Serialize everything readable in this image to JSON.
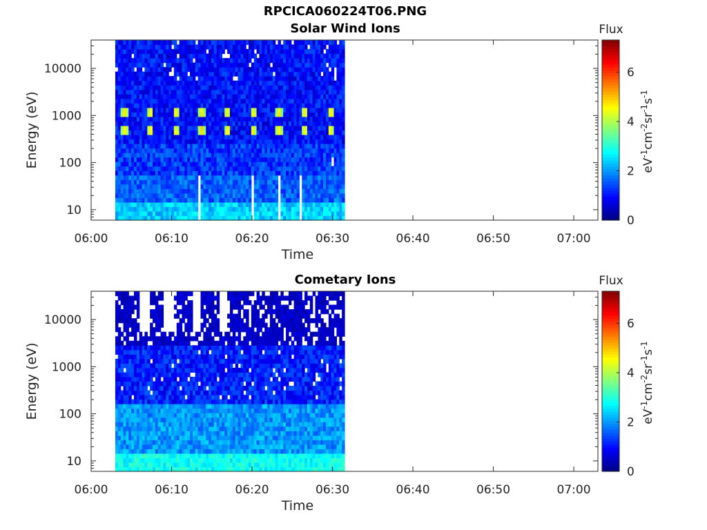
{
  "figure": {
    "title": "RPCICA060224T06.PNG"
  },
  "chart_data": [
    {
      "type": "heatmap",
      "title": "Solar Wind Ions",
      "xlabel": "Time",
      "ylabel": "Energy (eV)",
      "x_ticks": [
        "06:00",
        "06:10",
        "06:20",
        "06:30",
        "06:40",
        "06:50",
        "07:00"
      ],
      "xlim": [
        "06:00",
        "07:03"
      ],
      "data_time_range": [
        "06:03",
        "06:31.5"
      ],
      "y_scale": "log",
      "y_ticks": [
        "10",
        "100",
        "1000",
        "10000"
      ],
      "ylim": [
        6,
        40000
      ],
      "colorbar": {
        "title": "Flux",
        "label": "eV-1cm-2sr-1s-1",
        "ticks": [
          "0",
          "2",
          "4",
          "6"
        ],
        "range": [
          0,
          7.3
        ]
      },
      "features": {
        "sweep_peaks_minutes": [
          4,
          7.2,
          10.4,
          13.6,
          16.8,
          20,
          23.2,
          26.4,
          29.6
        ],
        "peak_energy_bands_eV": [
          [
            420,
            680
          ],
          [
            1050,
            1350
          ]
        ],
        "peak_flux": 4.8,
        "background_flux": 1.0,
        "low_energy_flux": 2.4,
        "gap_minutes_low_energy": [
          13.2,
          19.9,
          23.2,
          25.8
        ],
        "gap_minutes_mid_energy": [
          29.8
        ]
      }
    },
    {
      "type": "heatmap",
      "title": "Cometary Ions",
      "xlabel": "Time",
      "ylabel": "Energy (eV)",
      "x_ticks": [
        "06:00",
        "06:10",
        "06:20",
        "06:30",
        "06:40",
        "06:50",
        "07:00"
      ],
      "xlim": [
        "06:00",
        "07:03"
      ],
      "data_time_range": [
        "06:03",
        "06:31.5"
      ],
      "y_scale": "log",
      "y_ticks": [
        "10",
        "100",
        "1000",
        "10000"
      ],
      "ylim": [
        6,
        40000
      ],
      "colorbar": {
        "title": "Flux",
        "label": "eV-1cm-2sr-1s-1",
        "ticks": [
          "0",
          "2",
          "4",
          "6"
        ],
        "range": [
          0,
          7.3
        ]
      },
      "features": {
        "high_energy_flux": 0.3,
        "mid_energy_flux": 1.1,
        "low_energy_flux": 2.8,
        "white_gap_columns_minutes": [
          6.5,
          9.5,
          13.0,
          16.3
        ],
        "boundary_energy_eV": 3000
      }
    }
  ]
}
